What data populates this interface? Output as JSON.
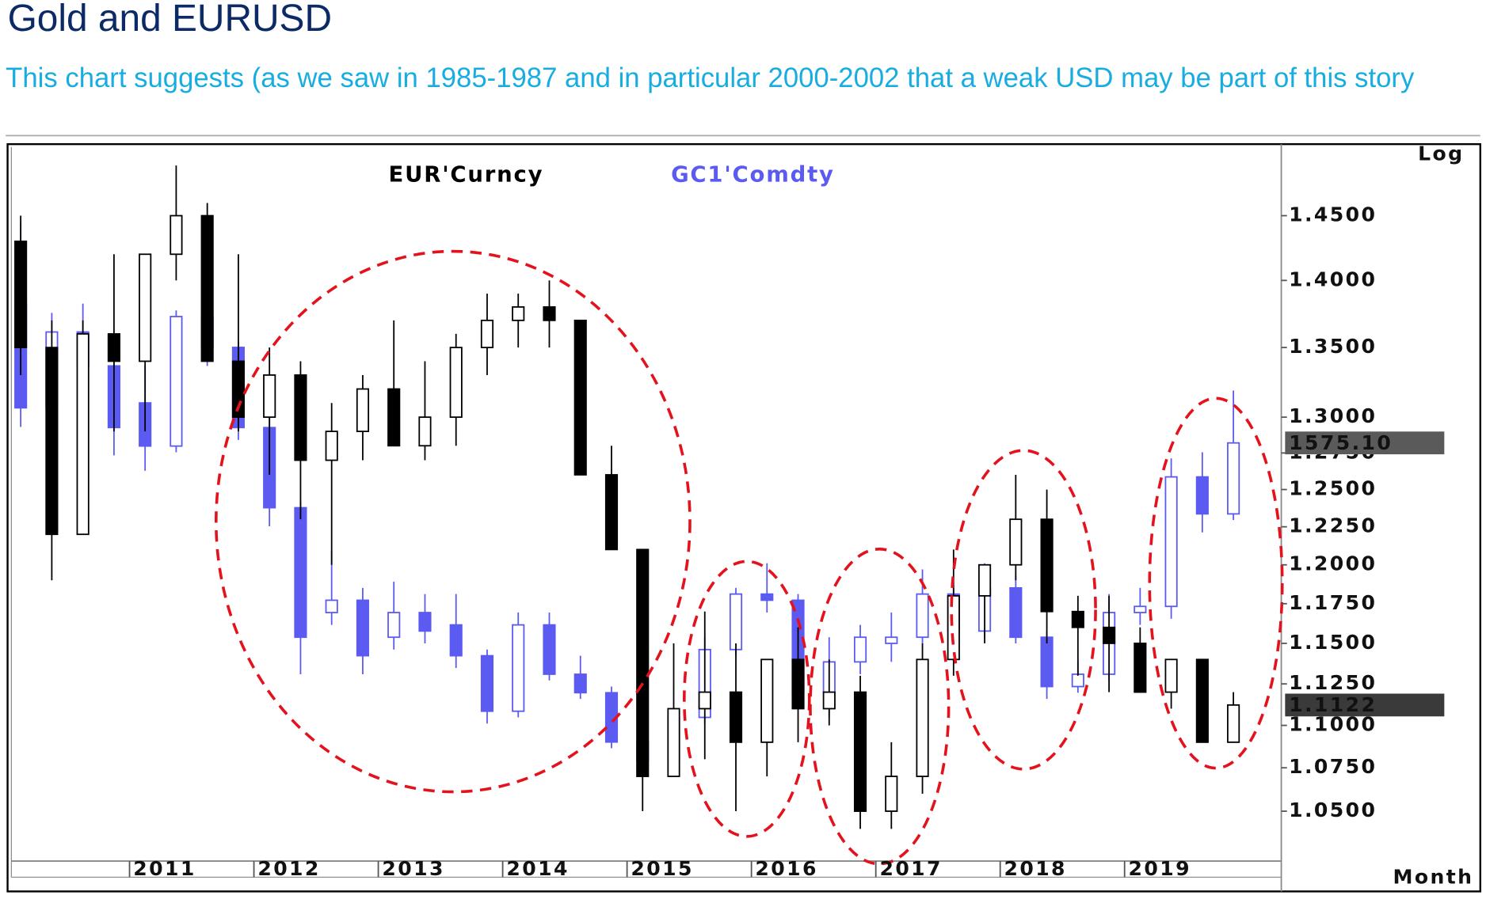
{
  "chart_data": {
    "type": "candlestick",
    "title": "Gold and EURUSD",
    "subtitle": "This chart suggests (as we saw in 1985-1987 and in particular 2000-2002 that a weak USD may be part of this story",
    "y_scale_label": "Log",
    "x_unit_label": "Month",
    "log_y": true,
    "xlim": [
      2010.05,
      2020.26
    ],
    "xticks": [
      2011,
      2012,
      2013,
      2014,
      2015,
      2016,
      2017,
      2018,
      2019
    ],
    "ylim": [
      1.022,
      1.505
    ],
    "yticks": [
      {
        "value": 1.05,
        "label": "1.0500"
      },
      {
        "value": 1.075,
        "label": "1.0750"
      },
      {
        "value": 1.1,
        "label": "1.1000"
      },
      {
        "value": 1.125,
        "label": "1.1250"
      },
      {
        "value": 1.15,
        "label": "1.1500"
      },
      {
        "value": 1.175,
        "label": "1.1750"
      },
      {
        "value": 1.2,
        "label": "1.2000"
      },
      {
        "value": 1.225,
        "label": "1.2250"
      },
      {
        "value": 1.25,
        "label": "1.2500"
      },
      {
        "value": 1.275,
        "label": "1.2750"
      },
      {
        "value": 1.3,
        "label": "1.3000"
      },
      {
        "value": 1.35,
        "label": "1.3500"
      },
      {
        "value": 1.4,
        "label": "1.4000"
      },
      {
        "value": 1.45,
        "label": "1.4500"
      }
    ],
    "y2lim": [
      897,
      2055
    ],
    "x": [
      2010.125,
      2010.375,
      2010.625,
      2010.875,
      2011.125,
      2011.375,
      2011.625,
      2011.875,
      2012.125,
      2012.375,
      2012.625,
      2012.875,
      2013.125,
      2013.375,
      2013.625,
      2013.875,
      2014.125,
      2014.375,
      2014.625,
      2014.875,
      2015.125,
      2015.375,
      2015.625,
      2015.875,
      2016.125,
      2016.375,
      2016.625,
      2016.875,
      2017.125,
      2017.375,
      2017.625,
      2017.875,
      2018.125,
      2018.375,
      2018.625,
      2018.875,
      2019.125,
      2019.375,
      2019.625,
      2019.875
    ],
    "series": [
      {
        "name": "GC1'Comdty",
        "axis": "y2",
        "color": "#5b5bf2",
        "up_fill": "#ffffff",
        "last_label": "1575.10",
        "label_bg": "#5a5a5a",
        "open": [
          1800,
          1632,
          1755,
          1700,
          1640,
          1570,
          1780,
          1730,
          1600,
          1470,
          1300,
          1320,
          1260,
          1300,
          1280,
          1230,
          1140,
          1280,
          1200,
          1170,
          1090,
          1060,
          1130,
          1240,
          1330,
          1320,
          1170,
          1220,
          1250,
          1260,
          1330,
          1270,
          1340,
          1260,
          1180,
          1200,
          1300,
          1310,
          1520,
          1460
        ],
        "high": [
          1932,
          1786,
          1801,
          1740,
          1700,
          1790,
          1820,
          1740,
          1620,
          1480,
          1400,
          1340,
          1350,
          1330,
          1330,
          1240,
          1300,
          1300,
          1230,
          1180,
          1120,
          1140,
          1260,
          1340,
          1380,
          1330,
          1260,
          1280,
          1300,
          1370,
          1340,
          1380,
          1360,
          1270,
          1220,
          1330,
          1340,
          1550,
          1560,
          1660
        ],
        "low": [
          1601,
          1555,
          1600,
          1555,
          1530,
          1560,
          1700,
          1580,
          1440,
          1200,
          1280,
          1200,
          1240,
          1250,
          1210,
          1120,
          1130,
          1190,
          1160,
          1080,
          1040,
          1050,
          1120,
          1230,
          1300,
          1150,
          1130,
          1200,
          1220,
          1250,
          1240,
          1260,
          1250,
          1160,
          1170,
          1190,
          1280,
          1290,
          1430,
          1450
        ],
        "close": [
          1632,
          1755,
          1700,
          1600,
          1570,
          1780,
          1730,
          1600,
          1470,
          1260,
          1320,
          1230,
          1300,
          1270,
          1230,
          1140,
          1280,
          1200,
          1170,
          1090,
          1060,
          1130,
          1240,
          1330,
          1320,
          1170,
          1220,
          1260,
          1260,
          1330,
          1270,
          1340,
          1260,
          1180,
          1200,
          1300,
          1310,
          1520,
          1460,
          1575.1
        ]
      },
      {
        "name": "EUR'Curncy",
        "axis": "y",
        "color": "#000000",
        "up_fill": "#ffffff",
        "label_bg": "#3a3a3a",
        "open": [
          1.43,
          1.35,
          1.22,
          1.36,
          1.34,
          1.42,
          1.45,
          1.34,
          1.3,
          1.33,
          1.27,
          1.29,
          1.32,
          1.28,
          1.3,
          1.35,
          1.37,
          1.38,
          1.37,
          1.26,
          1.21,
          1.07,
          1.11,
          1.12,
          1.09,
          1.14,
          1.11,
          1.12,
          1.05,
          1.07,
          1.14,
          1.18,
          1.2,
          1.23,
          1.17,
          1.16,
          1.15,
          1.12,
          1.14,
          1.09
        ],
        "high": [
          1.45,
          1.37,
          1.37,
          1.42,
          1.42,
          1.49,
          1.46,
          1.42,
          1.35,
          1.34,
          1.31,
          1.33,
          1.37,
          1.34,
          1.36,
          1.39,
          1.39,
          1.4,
          1.37,
          1.28,
          1.21,
          1.15,
          1.17,
          1.15,
          1.14,
          1.16,
          1.14,
          1.13,
          1.09,
          1.15,
          1.21,
          1.2,
          1.26,
          1.25,
          1.18,
          1.18,
          1.16,
          1.14,
          1.14,
          1.12
        ],
        "low": [
          1.33,
          1.19,
          1.22,
          1.29,
          1.29,
          1.4,
          1.34,
          1.29,
          1.26,
          1.23,
          1.2,
          1.27,
          1.28,
          1.27,
          1.28,
          1.33,
          1.35,
          1.35,
          1.26,
          1.21,
          1.05,
          1.07,
          1.08,
          1.05,
          1.07,
          1.09,
          1.1,
          1.04,
          1.04,
          1.06,
          1.13,
          1.15,
          1.19,
          1.15,
          1.13,
          1.12,
          1.12,
          1.11,
          1.09,
          1.09
        ],
        "close": [
          1.35,
          1.22,
          1.36,
          1.34,
          1.42,
          1.45,
          1.34,
          1.3,
          1.33,
          1.27,
          1.29,
          1.32,
          1.28,
          1.3,
          1.35,
          1.37,
          1.38,
          1.37,
          1.26,
          1.21,
          1.07,
          1.11,
          1.12,
          1.09,
          1.14,
          1.11,
          1.12,
          1.05,
          1.07,
          1.14,
          1.18,
          1.2,
          1.23,
          1.17,
          1.16,
          1.15,
          1.12,
          1.14,
          1.09,
          1.1122
        ]
      }
    ]
  }
}
